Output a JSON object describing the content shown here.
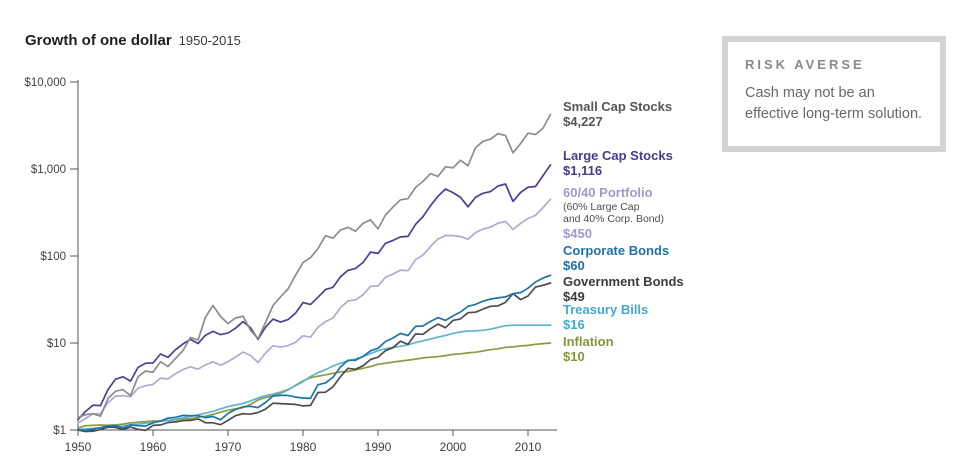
{
  "title": {
    "main": "Growth of one dollar",
    "period": "1950-2015"
  },
  "callout": {
    "heading": "RISK AVERSE",
    "body": "Cash may not be an effective long-term solution."
  },
  "chart_data": {
    "type": "line",
    "title": "Growth of one dollar 1950-2015",
    "y_scale": "log",
    "ylim": [
      1,
      10000
    ],
    "grid": false,
    "legend_position": "right",
    "x_start_year": 1950,
    "x_end_year": 2013,
    "x_ticks": [
      1950,
      1960,
      1970,
      1980,
      1990,
      2000,
      2010
    ],
    "y_ticks": [
      {
        "label": "$1",
        "value": 1
      },
      {
        "label": "$10",
        "value": 10
      },
      {
        "label": "$100",
        "value": 100
      },
      {
        "label": "$1,000",
        "value": 1000
      },
      {
        "label": "$10,000",
        "value": 10000
      }
    ],
    "axis_color": "#55565a",
    "series": [
      {
        "name": "Small Cap Stocks",
        "display_value": "$4,227",
        "final_value": 4227,
        "color": "#8c8c8c",
        "label_color": "#55565a",
        "values": [
          1.39,
          1.5,
          1.54,
          1.44,
          2.31,
          2.79,
          2.91,
          2.48,
          4.09,
          4.76,
          4.61,
          6.09,
          5.36,
          6.63,
          8.19,
          11.6,
          10.8,
          19.8,
          27,
          20.2,
          16.7,
          19.4,
          20.3,
          14,
          11.2,
          17.2,
          27,
          33.9,
          41.8,
          60,
          84,
          95.6,
          122,
          171,
          160,
          199,
          213,
          193,
          237,
          261,
          205,
          296,
          365,
          442,
          456,
          613,
          720,
          885,
          820,
          1060,
          1030,
          1260,
          1090,
          1760,
          2080,
          2200,
          2550,
          2420,
          1530,
          1960,
          2580,
          2490,
          2950,
          4227
        ]
      },
      {
        "name": "Large Cap Stocks",
        "display_value": "$1,116",
        "final_value": 1116,
        "color": "#4d3f93",
        "label_color": "#453c8e",
        "values": [
          1.32,
          1.63,
          1.93,
          1.91,
          2.92,
          3.84,
          4.09,
          3.65,
          5.24,
          5.86,
          5.89,
          7.48,
          6.83,
          8.38,
          9.77,
          11,
          9.88,
          12.3,
          13.6,
          12.5,
          13,
          14.8,
          17.6,
          15,
          11,
          15.2,
          18.8,
          17.4,
          18.6,
          22,
          29.1,
          27.7,
          33.6,
          41.1,
          43.7,
          57.8,
          68.5,
          72.1,
          84.2,
          111,
          107,
          140,
          151,
          166,
          168,
          231,
          284,
          379,
          487,
          589,
          536,
          472,
          368,
          473,
          525,
          550,
          637,
          672,
          424,
          536,
          617,
          630,
          840,
          1116
        ]
      },
      {
        "name": "60/40 Portfolio",
        "sublabel_line1": "(60% Large Cap",
        "sublabel_line2": "and 40% Corp. Bond)",
        "sublabel_color": "#4f4f52",
        "display_value": "$450",
        "final_value": 450,
        "color": "#b2a8d5",
        "label_color": "#a198cf",
        "values": [
          1.2,
          1.36,
          1.53,
          1.54,
          2.06,
          2.45,
          2.48,
          2.41,
          3.02,
          3.22,
          3.35,
          3.95,
          3.87,
          4.44,
          4.96,
          5.32,
          5,
          5.62,
          6.06,
          5.55,
          6.09,
          6.88,
          7.87,
          7.21,
          5.97,
          7.65,
          9.31,
          8.97,
          9.33,
          10.2,
          12.1,
          11.7,
          15.2,
          17.6,
          19.4,
          25.5,
          30.4,
          31.3,
          35.8,
          44.8,
          45.2,
          57.1,
          61.9,
          68.8,
          67.8,
          90.4,
          103,
          129,
          157,
          172,
          172,
          167,
          156,
          186,
          204,
          215,
          238,
          249,
          202,
          237,
          270,
          293,
          360,
          450
        ]
      },
      {
        "name": "Corporate Bonds",
        "display_value": "$60",
        "final_value": 60,
        "color": "#1c75aa",
        "label_color": "#2270a7",
        "values": [
          1.02,
          0.99,
          1.03,
          1.06,
          1.12,
          1.13,
          1.05,
          1.14,
          1.12,
          1.11,
          1.21,
          1.27,
          1.37,
          1.4,
          1.47,
          1.46,
          1.46,
          1.39,
          1.43,
          1.31,
          1.55,
          1.72,
          1.85,
          1.87,
          1.81,
          2.07,
          2.46,
          2.5,
          2.5,
          2.39,
          2.33,
          2.31,
          3.32,
          3.48,
          4.05,
          5.3,
          6.35,
          6.33,
          7.01,
          8.14,
          8.69,
          10.4,
          11.4,
          12.9,
          12.2,
          15.5,
          15.7,
          17.7,
          19.6,
          18.2,
          20.5,
          22.7,
          26.4,
          27.8,
          30.2,
          32,
          33,
          33.9,
          36.9,
          38,
          42.7,
          50.3,
          55.7,
          60
        ]
      },
      {
        "name": "Government Bonds",
        "display_value": "$49",
        "final_value": 49,
        "color": "#4d4d4f",
        "label_color": "#3a3b3d",
        "values": [
          1,
          0.96,
          0.97,
          1.01,
          1.08,
          1.07,
          1.01,
          1.08,
          1.02,
          0.99,
          1.13,
          1.14,
          1.22,
          1.24,
          1.28,
          1.29,
          1.34,
          1.21,
          1.21,
          1.15,
          1.29,
          1.46,
          1.54,
          1.52,
          1.59,
          1.74,
          2.03,
          2.01,
          1.99,
          1.97,
          1.89,
          1.92,
          2.7,
          2.72,
          3.14,
          4.11,
          5.12,
          4.98,
          5.47,
          6.46,
          6.86,
          8.18,
          8.84,
          10.5,
          9.64,
          12.7,
          12.6,
          14.6,
          16.5,
          15,
          18.2,
          18.9,
          22.3,
          22.6,
          24.5,
          26.4,
          26.7,
          29.4,
          37,
          31.5,
          34.7,
          44,
          46,
          49
        ]
      },
      {
        "name": "Treasury Bills",
        "display_value": "$16",
        "final_value": 16,
        "color": "#5fb3cf",
        "label_color": "#47a8c9",
        "values": [
          1.01,
          1.03,
          1.04,
          1.06,
          1.07,
          1.09,
          1.11,
          1.15,
          1.17,
          1.2,
          1.23,
          1.26,
          1.29,
          1.33,
          1.38,
          1.43,
          1.5,
          1.56,
          1.64,
          1.75,
          1.86,
          1.94,
          2.02,
          2.16,
          2.33,
          2.47,
          2.59,
          2.73,
          2.92,
          3.23,
          3.59,
          4.12,
          4.55,
          4.95,
          5.44,
          5.86,
          6.22,
          6.56,
          6.97,
          7.56,
          8.15,
          8.61,
          8.91,
          9.17,
          9.53,
          10.1,
          10.6,
          11.1,
          11.7,
          12.2,
          12.9,
          13.4,
          13.7,
          13.8,
          14,
          14.4,
          15.1,
          15.8,
          16,
          16,
          16,
          16,
          16,
          16
        ]
      },
      {
        "name": "Inflation",
        "display_value": "$10",
        "final_value": 10,
        "color": "#8d9b41",
        "label_color": "#86953c",
        "values": [
          1.06,
          1.12,
          1.13,
          1.14,
          1.13,
          1.14,
          1.17,
          1.21,
          1.23,
          1.25,
          1.27,
          1.27,
          1.29,
          1.31,
          1.33,
          1.35,
          1.4,
          1.44,
          1.51,
          1.6,
          1.69,
          1.75,
          1.81,
          1.97,
          2.21,
          2.36,
          2.48,
          2.64,
          2.88,
          3.26,
          3.67,
          3.99,
          4.15,
          4.31,
          4.48,
          4.65,
          4.7,
          4.91,
          5.12,
          5.36,
          5.69,
          5.86,
          6.03,
          6.2,
          6.36,
          6.53,
          6.74,
          6.86,
          6.97,
          7.16,
          7.4,
          7.51,
          7.69,
          7.84,
          8.09,
          8.37,
          8.58,
          8.93,
          9.01,
          9.26,
          9.39,
          9.67,
          9.84,
          10
        ]
      }
    ]
  }
}
